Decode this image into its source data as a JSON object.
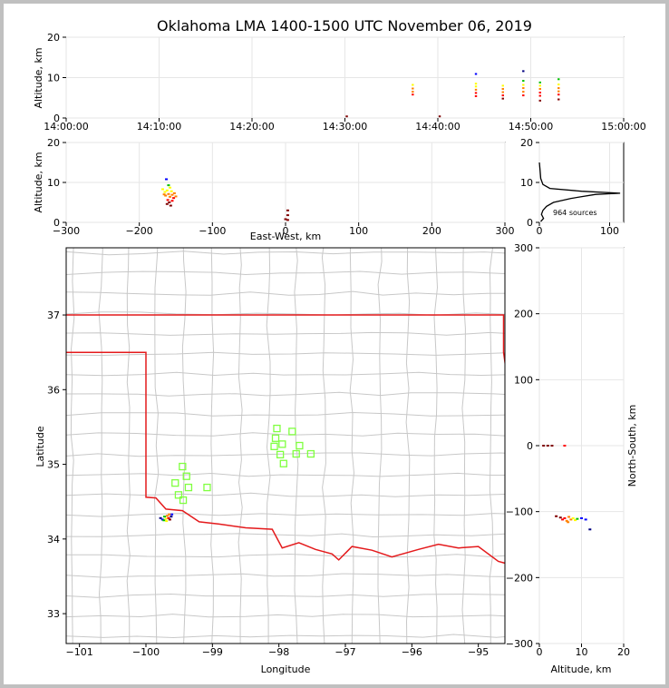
{
  "title": "Oklahoma LMA 1400-1500 UTC November 06, 2019",
  "colors": {
    "state_line": "#e41a1c",
    "county_lines": "#c8c8c8",
    "stations": "#7fff3f",
    "sources": [
      "#000080",
      "#0000ff",
      "#00c000",
      "#ffff00",
      "#ff8000",
      "#ff0000",
      "#800000"
    ]
  },
  "chart_data": [
    {
      "id": "time-height",
      "type": "scatter",
      "ylabel": "Altitude, km",
      "ylim": [
        0,
        20
      ],
      "yticks": [
        "0",
        "10",
        "20"
      ],
      "xticks": [
        "14:00:00",
        "14:10:00",
        "14:20:00",
        "14:30:00",
        "14:40:00",
        "14:50:00",
        "15:00:00"
      ],
      "x_minutes": [
        0,
        60
      ],
      "points": [
        {
          "x": 37.3,
          "y": 8.2
        },
        {
          "x": 37.3,
          "y": 7.3
        },
        {
          "x": 37.3,
          "y": 6.5
        },
        {
          "x": 37.3,
          "y": 5.8
        },
        {
          "x": 44.1,
          "y": 10.9
        },
        {
          "x": 44.1,
          "y": 8.5
        },
        {
          "x": 44.1,
          "y": 7.8
        },
        {
          "x": 44.1,
          "y": 7.0
        },
        {
          "x": 44.1,
          "y": 6.2
        },
        {
          "x": 44.1,
          "y": 5.4
        },
        {
          "x": 47.0,
          "y": 8.0
        },
        {
          "x": 47.0,
          "y": 7.2
        },
        {
          "x": 47.0,
          "y": 6.4
        },
        {
          "x": 47.0,
          "y": 5.6
        },
        {
          "x": 47.0,
          "y": 4.8
        },
        {
          "x": 49.2,
          "y": 11.6
        },
        {
          "x": 49.2,
          "y": 9.2
        },
        {
          "x": 49.2,
          "y": 8.2
        },
        {
          "x": 49.2,
          "y": 7.4
        },
        {
          "x": 49.2,
          "y": 6.5
        },
        {
          "x": 49.2,
          "y": 5.6
        },
        {
          "x": 51.0,
          "y": 8.8
        },
        {
          "x": 51.0,
          "y": 8.0
        },
        {
          "x": 51.0,
          "y": 7.2
        },
        {
          "x": 51.0,
          "y": 6.3
        },
        {
          "x": 51.0,
          "y": 5.5
        },
        {
          "x": 51.0,
          "y": 4.3
        },
        {
          "x": 53.0,
          "y": 9.6
        },
        {
          "x": 53.0,
          "y": 8.3
        },
        {
          "x": 53.0,
          "y": 7.4
        },
        {
          "x": 53.0,
          "y": 6.6
        },
        {
          "x": 53.0,
          "y": 5.8
        },
        {
          "x": 53.0,
          "y": 4.6
        },
        {
          "x": 30.2,
          "y": 0.4
        },
        {
          "x": 40.2,
          "y": 0.4
        }
      ]
    },
    {
      "id": "ew-height",
      "type": "scatter",
      "xlabel": "East-West, km",
      "ylabel": "Altitude, km",
      "xlim": [
        -300,
        300
      ],
      "ylim": [
        0,
        20
      ],
      "xticks": [
        "−300",
        "−200",
        "−100",
        "0",
        "100",
        "200",
        "300"
      ],
      "yticks": [
        "0",
        "10",
        "20"
      ],
      "points": [
        {
          "x": -168,
          "y": 8.3
        },
        {
          "x": -165,
          "y": 7.6
        },
        {
          "x": -162,
          "y": 8.0
        },
        {
          "x": -160,
          "y": 7.1
        },
        {
          "x": -158,
          "y": 6.4
        },
        {
          "x": -156,
          "y": 7.8
        },
        {
          "x": -155,
          "y": 6.9
        },
        {
          "x": -153,
          "y": 6.1
        },
        {
          "x": -164,
          "y": 6.7
        },
        {
          "x": -161,
          "y": 5.6
        },
        {
          "x": -159,
          "y": 5.0
        },
        {
          "x": -157,
          "y": 4.2
        },
        {
          "x": -163,
          "y": 10.8
        },
        {
          "x": -160,
          "y": 9.3
        },
        {
          "x": -166,
          "y": 7.0
        },
        {
          "x": -152,
          "y": 7.3
        },
        {
          "x": -150,
          "y": 6.5
        },
        {
          "x": -162,
          "y": 4.6
        },
        {
          "x": -158,
          "y": 8.7
        },
        {
          "x": -155,
          "y": 5.4
        },
        {
          "x": 3,
          "y": 3.0
        },
        {
          "x": 3,
          "y": 1.8
        },
        {
          "x": 3,
          "y": 0.6
        },
        {
          "x": 0,
          "y": 0.8
        }
      ]
    },
    {
      "id": "altitude-histogram",
      "type": "line",
      "xlim": [
        0,
        120
      ],
      "ylim": [
        0,
        20
      ],
      "xticks": [
        "0",
        "100"
      ],
      "yticks": [
        "0",
        "10",
        "20"
      ],
      "annotation": "964 sources",
      "points": [
        {
          "x": 2,
          "y": 0.2
        },
        {
          "x": 6,
          "y": 1.0
        },
        {
          "x": 3,
          "y": 2.0
        },
        {
          "x": 5,
          "y": 3.0
        },
        {
          "x": 10,
          "y": 4.0
        },
        {
          "x": 20,
          "y": 5.0
        },
        {
          "x": 45,
          "y": 6.0
        },
        {
          "x": 80,
          "y": 7.0
        },
        {
          "x": 115,
          "y": 7.3
        },
        {
          "x": 60,
          "y": 7.8
        },
        {
          "x": 15,
          "y": 8.5
        },
        {
          "x": 5,
          "y": 9.5
        },
        {
          "x": 2,
          "y": 11.0
        },
        {
          "x": 1,
          "y": 13.0
        },
        {
          "x": 0,
          "y": 15.0
        }
      ]
    },
    {
      "id": "plan-view",
      "type": "map",
      "xlabel": "Longitude",
      "ylabel": "Latitude",
      "xlim": [
        -101.2,
        -94.6
      ],
      "ylim": [
        32.6,
        37.9
      ],
      "xticks": [
        "−101",
        "−100",
        "−99",
        "−98",
        "−97",
        "−96",
        "−95"
      ],
      "yticks": [
        "33",
        "34",
        "35",
        "36",
        "37"
      ],
      "stations": [
        {
          "lon": -98.03,
          "lat": 35.48
        },
        {
          "lon": -97.8,
          "lat": 35.44
        },
        {
          "lon": -98.05,
          "lat": 35.35
        },
        {
          "lon": -97.95,
          "lat": 35.27
        },
        {
          "lon": -98.07,
          "lat": 35.24
        },
        {
          "lon": -97.69,
          "lat": 35.25
        },
        {
          "lon": -97.98,
          "lat": 35.13
        },
        {
          "lon": -97.74,
          "lat": 35.14
        },
        {
          "lon": -97.52,
          "lat": 35.14
        },
        {
          "lon": -97.93,
          "lat": 35.01
        },
        {
          "lon": -99.45,
          "lat": 34.97
        },
        {
          "lon": -99.39,
          "lat": 34.84
        },
        {
          "lon": -99.56,
          "lat": 34.75
        },
        {
          "lon": -99.36,
          "lat": 34.69
        },
        {
          "lon": -99.08,
          "lat": 34.69
        },
        {
          "lon": -99.51,
          "lat": 34.59
        },
        {
          "lon": -99.44,
          "lat": 34.52
        }
      ],
      "sources": [
        {
          "lon": -99.78,
          "lat": 34.28
        },
        {
          "lon": -99.75,
          "lat": 34.26
        },
        {
          "lon": -99.72,
          "lat": 34.3
        },
        {
          "lon": -99.7,
          "lat": 34.27
        },
        {
          "lon": -99.68,
          "lat": 34.31
        },
        {
          "lon": -99.66,
          "lat": 34.28
        },
        {
          "lon": -99.64,
          "lat": 34.26
        },
        {
          "lon": -99.62,
          "lat": 34.3
        },
        {
          "lon": -99.61,
          "lat": 34.33
        },
        {
          "lon": -99.73,
          "lat": 34.25
        },
        {
          "lon": -99.69,
          "lat": 34.24
        },
        {
          "lon": -99.65,
          "lat": 34.33
        }
      ]
    },
    {
      "id": "height-ns",
      "type": "scatter",
      "xlabel": "Altitude, km",
      "ylabel": "North-South, km",
      "xlim": [
        0,
        20
      ],
      "ylim": [
        -300,
        300
      ],
      "xticks": [
        "0",
        "10",
        "20"
      ],
      "yticks": [
        "−300",
        "−200",
        "−100",
        "0",
        "100",
        "200",
        "300"
      ],
      "points": [
        {
          "x": 1,
          "y": 0
        },
        {
          "x": 2,
          "y": 0
        },
        {
          "x": 3,
          "y": 0
        },
        {
          "x": 6,
          "y": 0
        },
        {
          "x": 4,
          "y": -107
        },
        {
          "x": 5,
          "y": -109
        },
        {
          "x": 5.5,
          "y": -112
        },
        {
          "x": 6,
          "y": -110
        },
        {
          "x": 6.5,
          "y": -114
        },
        {
          "x": 7,
          "y": -108
        },
        {
          "x": 7.5,
          "y": -112
        },
        {
          "x": 8,
          "y": -110
        },
        {
          "x": 8.5,
          "y": -113
        },
        {
          "x": 9,
          "y": -111
        },
        {
          "x": 10,
          "y": -110
        },
        {
          "x": 11,
          "y": -112
        },
        {
          "x": 12,
          "y": -127
        },
        {
          "x": 6.8,
          "y": -116
        }
      ]
    }
  ]
}
